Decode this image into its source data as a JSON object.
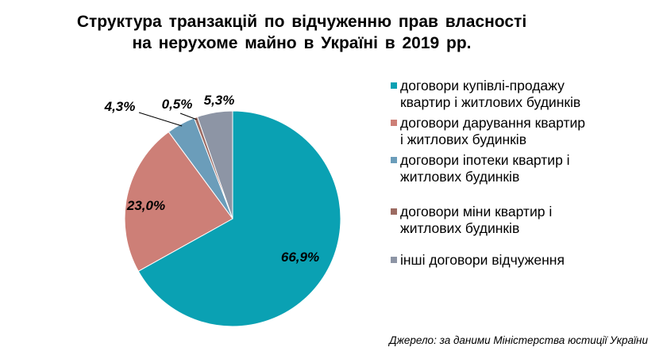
{
  "chart_data": {
    "type": "pie",
    "title_lines": [
      "Структура транзакцій по відчуженню прав власності",
      "на нерухоме майно в Україні в 2019 рр."
    ],
    "slices": [
      {
        "name": "договори купівлі-продажу квартир і житлових будинків",
        "value": 66.9,
        "label": "66,9%",
        "color": "#0aa1b3"
      },
      {
        "name": "договори дарування квартир і житлових будинків",
        "value": 23.0,
        "label": "23,0%",
        "color": "#cd7f77"
      },
      {
        "name": "договори іпотеки квартир і житлових будинків",
        "value": 4.3,
        "label": "4,3%",
        "color": "#6b9dba"
      },
      {
        "name": "договори міни квартир і житлових будинків",
        "value": 0.5,
        "label": "0,5%",
        "color": "#9c6b62"
      },
      {
        "name": "інші договори відчуження",
        "value": 5.3,
        "label": "5,3%",
        "color": "#8d95a5"
      }
    ],
    "legend_position": "right"
  },
  "source": "Джерело: за даними Міністерства юстиції України"
}
